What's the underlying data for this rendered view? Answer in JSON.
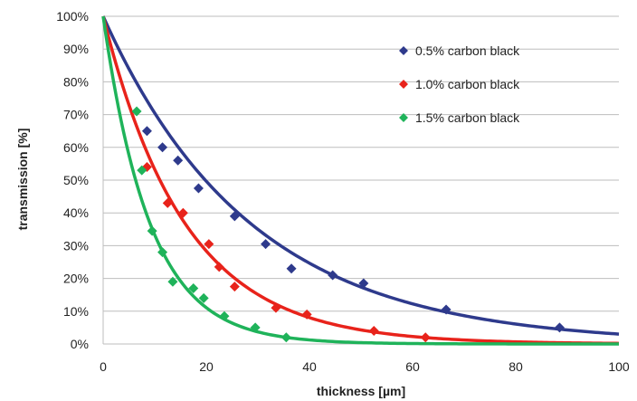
{
  "chart_data": {
    "type": "scatter",
    "xlabel": "thickness  [µm]",
    "ylabel": "transmission  [%]",
    "xlim": [
      0,
      100
    ],
    "ylim": [
      0,
      100
    ],
    "x_ticks": [
      "0",
      "20",
      "40",
      "60",
      "80",
      "100"
    ],
    "y_ticks": [
      "0%",
      "10%",
      "20%",
      "30%",
      "40%",
      "50%",
      "60%",
      "70%",
      "80%",
      "90%",
      "100%"
    ],
    "grid": "horizontal",
    "legend_position": "top-right",
    "series": [
      {
        "name": "0.5% carbon black",
        "color": "#2e3a8c",
        "marker": "diamond",
        "points": [
          [
            8.5,
            65
          ],
          [
            11.5,
            60
          ],
          [
            14.5,
            56
          ],
          [
            18.5,
            47.5
          ],
          [
            25.5,
            39
          ],
          [
            31.5,
            30.5
          ],
          [
            36.5,
            23
          ],
          [
            44.5,
            21
          ],
          [
            50.5,
            18.5
          ],
          [
            66.5,
            10.5
          ],
          [
            88.5,
            5
          ]
        ],
        "curve_decay": 0.035
      },
      {
        "name": "1.0% carbon black",
        "color": "#e8231b",
        "marker": "diamond",
        "points": [
          [
            8.5,
            54
          ],
          [
            12.5,
            43
          ],
          [
            15.5,
            40
          ],
          [
            20.5,
            30.5
          ],
          [
            22.5,
            23.5
          ],
          [
            25.5,
            17.5
          ],
          [
            33.5,
            11
          ],
          [
            39.5,
            9
          ],
          [
            52.5,
            4
          ],
          [
            62.5,
            2
          ]
        ],
        "curve_decay": 0.063
      },
      {
        "name": "1.5% carbon black",
        "color": "#1fb35a",
        "marker": "diamond",
        "points": [
          [
            6.5,
            71
          ],
          [
            7.5,
            53
          ],
          [
            9.5,
            34.5
          ],
          [
            11.5,
            28
          ],
          [
            13.5,
            19
          ],
          [
            17.5,
            17
          ],
          [
            19.5,
            14
          ],
          [
            23.5,
            8.5
          ],
          [
            29.5,
            5
          ],
          [
            35.5,
            2
          ]
        ],
        "curve_decay": 0.11
      }
    ]
  }
}
